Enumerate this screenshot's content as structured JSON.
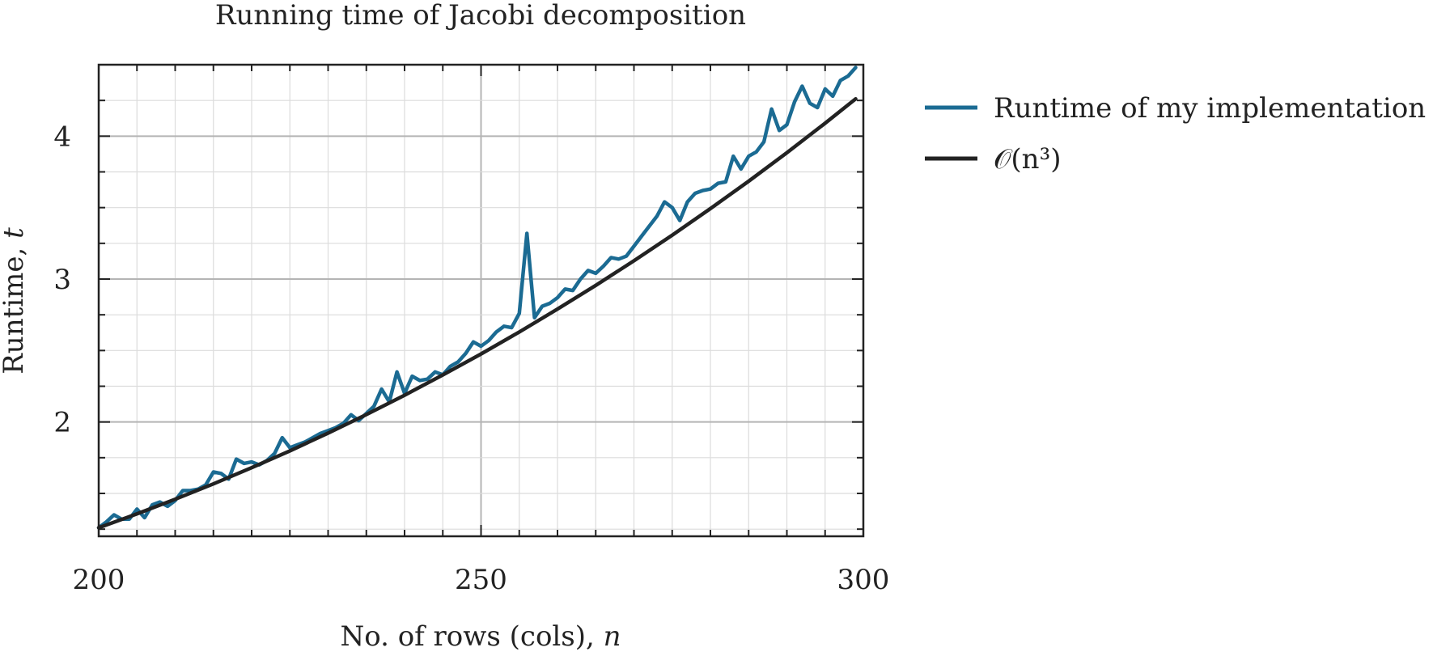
{
  "chart_data": {
    "type": "line",
    "title": "Running time of Jacobi decomposition",
    "xlabel_text": "No. of rows (cols), ",
    "xlabel_var": "n",
    "ylabel_text": "Runtime, ",
    "ylabel_var": "t",
    "xlim": [
      200,
      300
    ],
    "ylim": [
      1.2,
      4.5
    ],
    "x_ticks": [
      200,
      250,
      300
    ],
    "x_tick_labels": [
      "200",
      "250",
      "300"
    ],
    "y_ticks": [
      2,
      3,
      4
    ],
    "y_tick_labels": [
      "2",
      "3",
      "4"
    ],
    "grid": true,
    "legend_position": "outside-right",
    "series": [
      {
        "name": "Runtime of my implementation",
        "color": "#1b6b93",
        "x": [
          200,
          201,
          202,
          203,
          204,
          205,
          206,
          207,
          208,
          209,
          210,
          211,
          212,
          213,
          214,
          215,
          216,
          217,
          218,
          219,
          220,
          221,
          222,
          223,
          224,
          225,
          226,
          227,
          228,
          229,
          230,
          231,
          232,
          233,
          234,
          235,
          236,
          237,
          238,
          239,
          240,
          241,
          242,
          243,
          244,
          245,
          246,
          247,
          248,
          249,
          250,
          251,
          252,
          253,
          254,
          255,
          256,
          257,
          258,
          259,
          260,
          261,
          262,
          263,
          264,
          265,
          266,
          267,
          268,
          269,
          270,
          271,
          272,
          273,
          274,
          275,
          276,
          277,
          278,
          279,
          280,
          281,
          282,
          283,
          284,
          285,
          286,
          287,
          288,
          289,
          290,
          291,
          292,
          293,
          294,
          295,
          296,
          297,
          298,
          299
        ],
        "values": [
          1.26,
          1.3,
          1.35,
          1.32,
          1.32,
          1.39,
          1.33,
          1.42,
          1.44,
          1.41,
          1.45,
          1.52,
          1.52,
          1.53,
          1.56,
          1.65,
          1.64,
          1.6,
          1.74,
          1.71,
          1.72,
          1.7,
          1.73,
          1.78,
          1.89,
          1.82,
          1.84,
          1.86,
          1.89,
          1.92,
          1.94,
          1.96,
          1.99,
          2.05,
          2.01,
          2.06,
          2.11,
          2.23,
          2.14,
          2.35,
          2.2,
          2.32,
          2.29,
          2.3,
          2.35,
          2.33,
          2.39,
          2.42,
          2.48,
          2.56,
          2.53,
          2.57,
          2.63,
          2.67,
          2.66,
          2.76,
          3.32,
          2.73,
          2.81,
          2.83,
          2.87,
          2.93,
          2.92,
          3.0,
          3.06,
          3.04,
          3.09,
          3.15,
          3.14,
          3.16,
          3.23,
          3.3,
          3.37,
          3.44,
          3.54,
          3.5,
          3.41,
          3.54,
          3.6,
          3.62,
          3.63,
          3.67,
          3.68,
          3.86,
          3.77,
          3.86,
          3.89,
          3.96,
          4.19,
          4.04,
          4.08,
          4.24,
          4.35,
          4.23,
          4.2,
          4.33,
          4.28,
          4.39,
          4.42,
          4.48
        ]
      },
      {
        "name": "𝒪(n³)",
        "color": "#222222",
        "x": [
          200,
          205,
          210,
          215,
          220,
          225,
          230,
          235,
          240,
          245,
          250,
          255,
          260,
          265,
          270,
          275,
          280,
          285,
          290,
          295,
          299
        ],
        "values": [
          1.26,
          1.357,
          1.459,
          1.567,
          1.68,
          1.798,
          1.922,
          2.052,
          2.187,
          2.329,
          2.476,
          2.63,
          2.79,
          2.956,
          3.128,
          3.307,
          3.493,
          3.685,
          3.884,
          4.091,
          4.261
        ]
      }
    ]
  }
}
